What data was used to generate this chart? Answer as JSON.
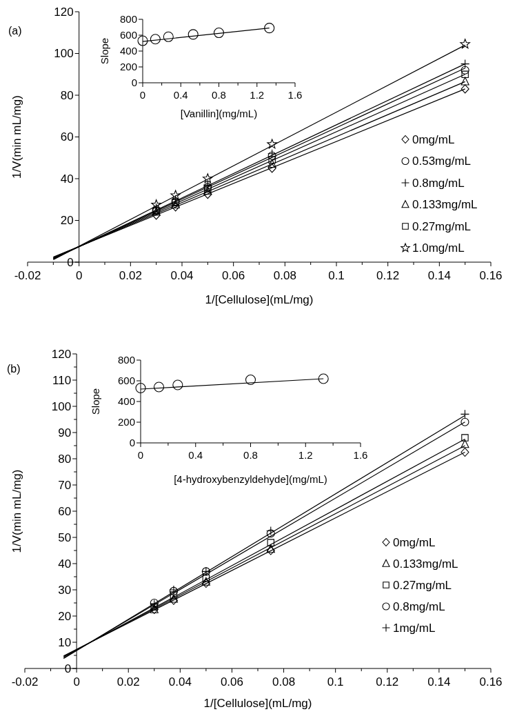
{
  "chart_data": [
    {
      "type": "scatter",
      "title": "(a)",
      "xlabel": "1/[Cellulose](mL/mg)",
      "ylabel": "1/V(min mL/mg)",
      "x": [
        0.03,
        0.0375,
        0.05,
        0.075,
        0.15
      ],
      "xlim": [
        -0.02,
        0.16
      ],
      "ylim": [
        0,
        120
      ],
      "xticks": [
        -0.02,
        {
          "value": -0.01,
          "label": null
        },
        0,
        {
          "value": 0.01,
          "label": null
        },
        0.02,
        {
          "value": 0.03,
          "label": null
        },
        0.04,
        {
          "value": 0.05,
          "label": null
        },
        0.06,
        {
          "value": 0.07,
          "label": null
        },
        0.08,
        {
          "value": 0.09,
          "label": null
        },
        0.1,
        {
          "value": 0.11,
          "label": null
        },
        0.12,
        {
          "value": 0.13,
          "label": null
        },
        0.14,
        {
          "value": 0.15,
          "label": null
        },
        0.16
      ],
      "yticks": [
        0,
        20,
        40,
        60,
        80,
        100,
        120
      ],
      "legend": "right",
      "series": [
        {
          "name": "0mg/mL",
          "color": "#000000",
          "marker": "diamond",
          "values": [
            22.5,
            26.5,
            32.5,
            45,
            83
          ]
        },
        {
          "name": "0.53mg/mL",
          "color": "#000000",
          "marker": "circle",
          "values": [
            25,
            29,
            36,
            51,
            92
          ]
        },
        {
          "name": "0.8mg/mL",
          "color": "#000000",
          "marker": "cross",
          "values": [
            26,
            30,
            37,
            52,
            95
          ]
        },
        {
          "name": "0.133mg/mL",
          "color": "#000000",
          "marker": "triangle",
          "values": [
            24,
            27.5,
            34,
            47,
            86.5
          ]
        },
        {
          "name": "0.27mg/mL",
          "color": "#000000",
          "marker": "square",
          "values": [
            24.5,
            28.5,
            35,
            49,
            90
          ]
        },
        {
          "name": "1.0mg/mL",
          "color": "#000000",
          "marker": "star",
          "values": [
            27.5,
            32,
            40,
            56.5,
            104.5
          ]
        },
        {
          "type": "line",
          "color": "#000000",
          "x": [
            -0.01,
            0.15
          ],
          "values": [
            2.5,
            83
          ]
        },
        {
          "type": "line",
          "color": "#000000",
          "x": [
            -0.01,
            0.15
          ],
          "values": [
            2.2,
            86.5
          ]
        },
        {
          "type": "line",
          "color": "#000000",
          "x": [
            -0.01,
            0.15
          ],
          "values": [
            1.9,
            90
          ]
        },
        {
          "type": "line",
          "color": "#000000",
          "x": [
            -0.01,
            0.15
          ],
          "values": [
            1.7,
            93
          ]
        },
        {
          "type": "line",
          "color": "#000000",
          "x": [
            -0.01,
            0.15
          ],
          "values": [
            1.6,
            95
          ]
        },
        {
          "type": "line",
          "color": "#000000",
          "x": [
            -0.01,
            0.15
          ],
          "values": [
            1.2,
            104
          ]
        }
      ]
    },
    {
      "type": "scatter",
      "xlabel": "[Vanillin](mg/mL)",
      "ylabel": "Slope",
      "x": [
        0,
        0.133,
        0.27,
        0.53,
        0.8,
        1.33
      ],
      "xlim": [
        0,
        1.6
      ],
      "ylim": [
        0,
        800
      ],
      "xticks": [
        0,
        {
          "value": 0.2,
          "label": null
        },
        0.4,
        {
          "value": 0.6,
          "label": null
        },
        0.8,
        {
          "value": 1,
          "label": null
        },
        1.2,
        {
          "value": 1.4,
          "label": null
        },
        1.6
      ],
      "yticks": [
        0,
        200,
        400,
        600,
        800
      ],
      "series": [
        {
          "color": "#000000",
          "marker": "circle",
          "values": [
            530,
            550,
            580,
            610,
            630,
            690
          ]
        },
        {
          "type": "line",
          "color": "#000000",
          "x": [
            0,
            1.33
          ],
          "values": [
            520,
            690
          ]
        }
      ]
    },
    {
      "type": "scatter",
      "title": "(b)",
      "xlabel": "1/[Cellulose](mL/mg)",
      "ylabel": "1/V(min mL/mg)",
      "x": [
        0.03,
        0.0375,
        0.05,
        0.075,
        0.15
      ],
      "xlim": [
        -0.02,
        0.16
      ],
      "ylim": [
        0,
        120
      ],
      "xticks": [
        -0.02,
        {
          "value": -0.01,
          "label": null
        },
        0,
        {
          "value": 0.01,
          "label": null
        },
        0.02,
        {
          "value": 0.03,
          "label": null
        },
        0.04,
        {
          "value": 0.05,
          "label": null
        },
        0.06,
        {
          "value": 0.07,
          "label": null
        },
        0.08,
        {
          "value": 0.09,
          "label": null
        },
        0.1,
        {
          "value": 0.11,
          "label": null
        },
        0.12,
        {
          "value": 0.13,
          "label": null
        },
        0.14,
        {
          "value": 0.15,
          "label": null
        },
        0.16
      ],
      "yticks": [
        0,
        {
          "value": 5,
          "label": null
        },
        10,
        {
          "value": 15,
          "label": null
        },
        20,
        {
          "value": 25,
          "label": null
        },
        30,
        {
          "value": 35,
          "label": null
        },
        40,
        {
          "value": 45,
          "label": null
        },
        50,
        {
          "value": 55,
          "label": null
        },
        60,
        {
          "value": 65,
          "label": null
        },
        70,
        {
          "value": 75,
          "label": null
        },
        80,
        {
          "value": 85,
          "label": null
        },
        90,
        {
          "value": 95,
          "label": null
        },
        100,
        {
          "value": 105,
          "label": null
        },
        110,
        {
          "value": 115,
          "label": null
        },
        120
      ],
      "legend": "right",
      "series": [
        {
          "name": "0mg/mL",
          "color": "#000000",
          "marker": "diamond",
          "values": [
            22.5,
            26,
            32.5,
            45,
            82.5
          ]
        },
        {
          "name": "0.133mg/mL",
          "color": "#000000",
          "marker": "triangle",
          "values": [
            22.5,
            26.5,
            33,
            45.5,
            85.5
          ]
        },
        {
          "name": "0.27mg/mL",
          "color": "#000000",
          "marker": "square",
          "values": [
            23.5,
            28,
            34.5,
            48,
            88
          ]
        },
        {
          "name": "0.8mg/mL",
          "color": "#000000",
          "marker": "circle",
          "values": [
            25,
            29.5,
            37,
            51.5,
            94
          ]
        },
        {
          "name": "1mg/mL",
          "color": "#000000",
          "marker": "cross",
          "values": [
            24.5,
            30,
            37,
            52.5,
            97
          ]
        },
        {
          "type": "line",
          "color": "#000000",
          "x": [
            -0.005,
            0.15
          ],
          "values": [
            4.8,
            82.5
          ]
        },
        {
          "type": "line",
          "color": "#000000",
          "x": [
            -0.005,
            0.15
          ],
          "values": [
            4.6,
            85
          ]
        },
        {
          "type": "line",
          "color": "#000000",
          "x": [
            -0.005,
            0.15
          ],
          "values": [
            4.4,
            87.5
          ]
        },
        {
          "type": "line",
          "color": "#000000",
          "x": [
            -0.005,
            0.15
          ],
          "values": [
            4,
            94
          ]
        },
        {
          "type": "line",
          "color": "#000000",
          "x": [
            -0.005,
            0.15
          ],
          "values": [
            3.8,
            96.5
          ]
        }
      ]
    },
    {
      "type": "scatter",
      "xlabel": "[4-hydroxybenzyldehyde](mg/mL)",
      "ylabel": "Slope",
      "x": [
        0,
        0.133,
        0.27,
        0.8,
        1.33
      ],
      "xlim": [
        0,
        1.6
      ],
      "ylim": [
        0,
        800
      ],
      "xticks": [
        0,
        {
          "value": 0.2,
          "label": null
        },
        0.4,
        {
          "value": 0.6,
          "label": null
        },
        0.8,
        {
          "value": 1,
          "label": null
        },
        1.2,
        {
          "value": 1.4,
          "label": null
        },
        1.6
      ],
      "yticks": [
        0,
        200,
        400,
        600,
        800
      ],
      "series": [
        {
          "color": "#000000",
          "marker": "circle",
          "values": [
            530,
            540,
            560,
            610,
            620
          ]
        },
        {
          "type": "line",
          "color": "#000000",
          "x": [
            0,
            1.33
          ],
          "values": [
            520,
            620
          ]
        }
      ]
    }
  ]
}
